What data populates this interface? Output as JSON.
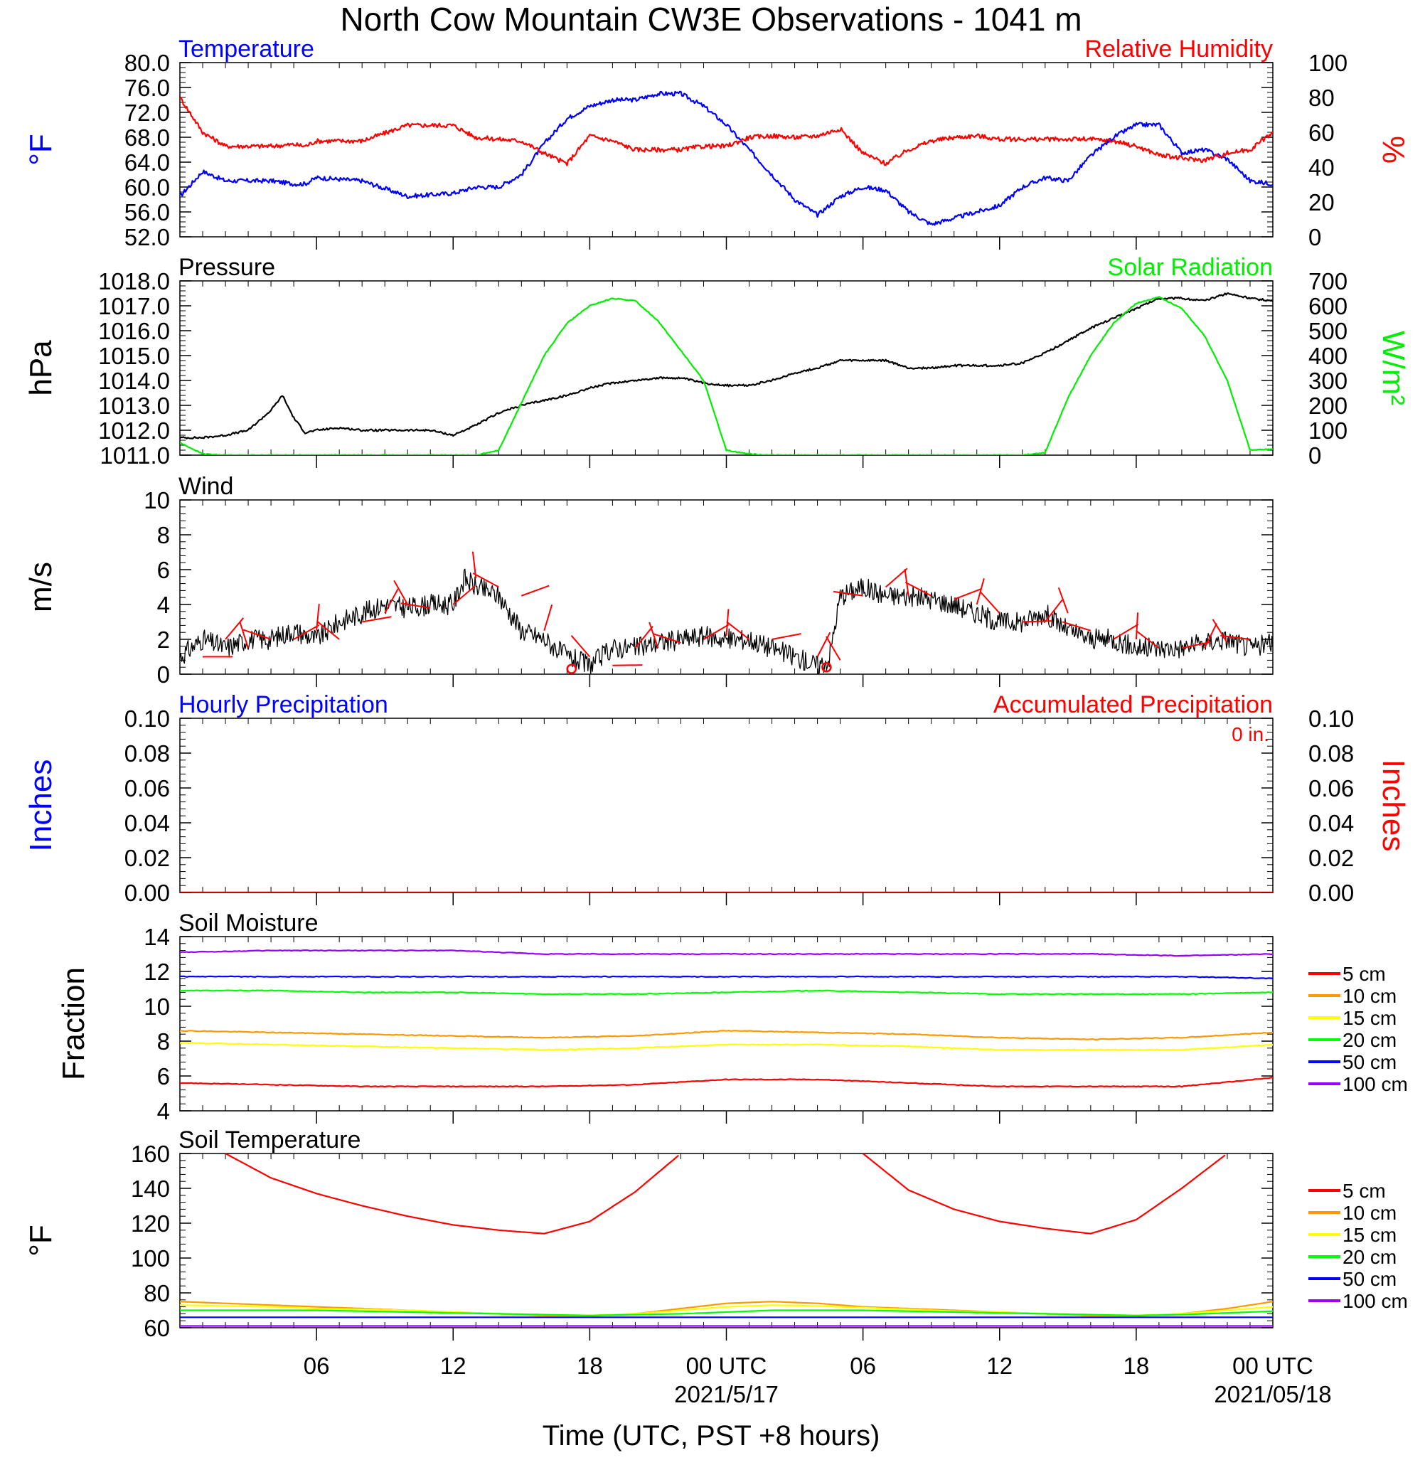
{
  "title": "North Cow Mountain CW3E Observations - 1041 m",
  "xlabel": "Time (UTC, PST +8 hours)",
  "x_ticks": [
    "06",
    "12",
    "18",
    "00 UTC",
    "06",
    "12",
    "18",
    "00 UTC"
  ],
  "x_date_labels": [
    "2021/5/17",
    "2021/05/18"
  ],
  "colors": {
    "temperature": "#0000ff",
    "humidity": "#ff0000",
    "pressure": "#000000",
    "solar": "#00ee00",
    "wind": "#000000",
    "barb": "#ff0000",
    "soil": [
      "#ff0000",
      "#ff9900",
      "#ffff00",
      "#00ff00",
      "#0000ff",
      "#9900ff"
    ]
  },
  "chart_data": [
    {
      "type": "line",
      "title_left": "Temperature",
      "title_right": "Relative Humidity",
      "ylabel_left": "°F",
      "ylabel_right": "%",
      "ylim_left": [
        52,
        80
      ],
      "ylim_right": [
        0,
        100
      ],
      "yticks_left": [
        "80.0",
        "76.0",
        "72.0",
        "68.0",
        "64.0",
        "60.0",
        "56.0",
        "52.0"
      ],
      "yticks_right": [
        "100",
        "80",
        "60",
        "40",
        "20",
        "0"
      ],
      "x_hours": [
        0,
        1,
        2,
        3,
        4,
        5,
        5.5,
        6,
        8,
        10,
        12,
        13,
        14,
        15,
        16,
        17,
        18,
        19,
        20,
        21,
        22,
        23,
        24,
        25,
        26,
        27,
        28,
        29,
        30,
        31,
        32,
        33,
        34,
        35,
        36,
        37,
        38,
        39,
        40,
        41,
        42,
        43,
        44,
        45,
        46,
        47,
        48
      ],
      "series": [
        {
          "name": "Temperature",
          "axis": "left",
          "values": [
            58.5,
            62.5,
            61,
            61,
            61,
            60.5,
            60.5,
            61.5,
            61,
            58.5,
            59,
            60,
            60,
            62,
            67,
            71,
            73,
            74,
            74,
            75,
            75,
            73,
            70,
            66,
            62,
            58,
            55.5,
            58.5,
            60,
            59.5,
            56,
            54,
            55,
            56,
            57,
            60,
            61.5,
            61,
            65,
            68,
            70,
            70,
            65.5,
            66,
            64.5,
            61,
            60.5
          ]
        },
        {
          "name": "Relative Humidity",
          "axis": "right",
          "values": [
            80,
            60,
            52,
            52,
            52,
            53,
            52,
            55,
            55,
            64,
            64,
            57,
            56,
            55,
            48,
            42,
            58,
            55,
            50,
            50,
            50,
            52,
            52,
            57,
            58,
            57,
            58,
            62,
            48,
            42,
            50,
            55,
            57,
            58,
            56,
            56,
            56,
            56,
            56,
            55,
            52,
            47,
            45,
            44,
            48,
            50,
            60
          ]
        }
      ]
    },
    {
      "type": "line",
      "title_left": "Pressure",
      "title_right": "Solar Radiation",
      "ylabel_left": "hPa",
      "ylabel_right": "W/m²",
      "ylim_left": [
        1011,
        1018
      ],
      "ylim_right": [
        0,
        700
      ],
      "yticks_left": [
        "1018.0",
        "1017.0",
        "1016.0",
        "1015.0",
        "1014.0",
        "1013.0",
        "1012.0",
        "1011.0"
      ],
      "yticks_right": [
        "700",
        "600",
        "500",
        "400",
        "300",
        "200",
        "100",
        "0"
      ],
      "x_hours": [
        0,
        1,
        2,
        3,
        4,
        4.5,
        5,
        5.5,
        6,
        7,
        8,
        9,
        10,
        11,
        12,
        13,
        14,
        15,
        16,
        17,
        18,
        19,
        20,
        21,
        22,
        23,
        24,
        25,
        26,
        27,
        28,
        29,
        30,
        31,
        32,
        33,
        34,
        35,
        36,
        37,
        38,
        39,
        40,
        41,
        42,
        43,
        44,
        45,
        46,
        47,
        48
      ],
      "series": [
        {
          "name": "Pressure",
          "axis": "left",
          "values": [
            1011.7,
            1011.7,
            1011.8,
            1012.0,
            1012.8,
            1013.4,
            1012.5,
            1011.9,
            1012.0,
            1012.1,
            1012.0,
            1012.0,
            1012.0,
            1012.0,
            1011.8,
            1012.2,
            1012.7,
            1013.0,
            1013.2,
            1013.4,
            1013.7,
            1013.9,
            1014.0,
            1014.1,
            1014.1,
            1013.9,
            1013.8,
            1013.8,
            1014.0,
            1014.3,
            1014.5,
            1014.8,
            1014.8,
            1014.8,
            1014.5,
            1014.5,
            1014.6,
            1014.6,
            1014.6,
            1014.7,
            1015.1,
            1015.6,
            1016.1,
            1016.5,
            1016.9,
            1017.3,
            1017.3,
            1017.2,
            1017.5,
            1017.3,
            1017.2
          ]
        },
        {
          "name": "Solar Radiation",
          "axis": "right",
          "values": [
            50,
            5,
            0,
            0,
            0,
            0,
            0,
            0,
            0,
            0,
            0,
            0,
            0,
            0,
            0,
            0,
            20,
            210,
            400,
            530,
            600,
            630,
            620,
            540,
            420,
            300,
            20,
            5,
            0,
            0,
            0,
            0,
            0,
            0,
            0,
            0,
            0,
            0,
            0,
            0,
            10,
            230,
            400,
            530,
            610,
            635,
            590,
            480,
            300,
            20,
            25
          ]
        }
      ]
    },
    {
      "type": "line",
      "title_left": "Wind",
      "ylabel_left": "m/s",
      "ylim_left": [
        0,
        10
      ],
      "yticks_left": [
        "10",
        "8",
        "6",
        "4",
        "2",
        "0"
      ],
      "x_hours": [
        0,
        1,
        2,
        3,
        4,
        5,
        6,
        7,
        8,
        9,
        10,
        11,
        12,
        12.5,
        13,
        14,
        15,
        16,
        17,
        18,
        19,
        20,
        21,
        22,
        23,
        24,
        25,
        26,
        27,
        28,
        28.5,
        29,
        30,
        31,
        32,
        33,
        34,
        35,
        36,
        37,
        38,
        39,
        40,
        41,
        42,
        43,
        44,
        45,
        46,
        47,
        48
      ],
      "series": [
        {
          "name": "Wind Speed",
          "values": [
            1,
            2,
            1.5,
            2,
            2,
            2.5,
            2,
            3,
            3.5,
            4,
            3.8,
            4,
            4,
            5.5,
            5,
            4.5,
            2.5,
            2,
            1,
            0.5,
            1.5,
            1.5,
            1.8,
            2,
            2.2,
            2,
            2,
            1.5,
            1,
            0.5,
            0.8,
            4.5,
            5,
            4.5,
            4.5,
            4.3,
            4,
            3.5,
            3,
            3,
            3.5,
            2.5,
            2,
            2,
            1.5,
            1.5,
            1.5,
            1.8,
            2,
            1.5,
            1.8
          ]
        }
      ]
    },
    {
      "type": "line",
      "title_left": "Hourly Precipitation",
      "title_right": "Accumulated Precipitation",
      "annotation": "0 in.",
      "ylabel_left": "Inches",
      "ylabel_right": "Inches",
      "ylim_left": [
        0,
        0.1
      ],
      "ylim_right": [
        0,
        0.1
      ],
      "yticks_left": [
        "0.10",
        "0.08",
        "0.06",
        "0.04",
        "0.02",
        "0.00"
      ],
      "yticks_right": [
        "0.10",
        "0.08",
        "0.06",
        "0.04",
        "0.02",
        "0.00"
      ],
      "x_hours": [
        0,
        48
      ],
      "series": [
        {
          "name": "Hourly Precipitation",
          "values": [
            0,
            0
          ]
        },
        {
          "name": "Accumulated Precipitation",
          "values": [
            0,
            0
          ]
        }
      ]
    },
    {
      "type": "line",
      "title_left": "Soil Moisture",
      "ylabel_left": "Fraction",
      "ylim_left": [
        4,
        14
      ],
      "yticks_left": [
        "14",
        "12",
        "10",
        "8",
        "6",
        "4"
      ],
      "legend": [
        "5 cm",
        "10 cm",
        "15 cm",
        "20 cm",
        "50 cm",
        "100 cm"
      ],
      "x_hours": [
        0,
        4,
        8,
        12,
        16,
        20,
        24,
        28,
        32,
        36,
        40,
        44,
        48
      ],
      "series": [
        {
          "name": "5 cm",
          "values": [
            5.6,
            5.5,
            5.4,
            5.4,
            5.4,
            5.5,
            5.8,
            5.8,
            5.6,
            5.4,
            5.4,
            5.4,
            5.9
          ]
        },
        {
          "name": "10 cm",
          "values": [
            8.6,
            8.5,
            8.4,
            8.3,
            8.2,
            8.3,
            8.6,
            8.5,
            8.4,
            8.2,
            8.1,
            8.2,
            8.5
          ]
        },
        {
          "name": "15 cm",
          "values": [
            7.9,
            7.8,
            7.7,
            7.6,
            7.5,
            7.6,
            7.8,
            7.8,
            7.7,
            7.5,
            7.5,
            7.5,
            7.8
          ]
        },
        {
          "name": "20 cm",
          "values": [
            10.9,
            10.9,
            10.8,
            10.8,
            10.7,
            10.7,
            10.8,
            10.9,
            10.8,
            10.7,
            10.7,
            10.7,
            10.8
          ]
        },
        {
          "name": "50 cm",
          "values": [
            11.7,
            11.7,
            11.7,
            11.7,
            11.7,
            11.7,
            11.7,
            11.7,
            11.7,
            11.7,
            11.7,
            11.7,
            11.6
          ]
        },
        {
          "name": "100 cm",
          "values": [
            13.1,
            13.2,
            13.2,
            13.2,
            13.0,
            13.0,
            13.0,
            13.0,
            13.0,
            13.0,
            13.0,
            12.9,
            13.0
          ]
        }
      ]
    },
    {
      "type": "line",
      "title_left": "Soil Temperature",
      "ylabel_left": "°F",
      "ylim_left": [
        60,
        160
      ],
      "yticks_left": [
        "160",
        "140",
        "120",
        "100",
        "80",
        "60"
      ],
      "legend": [
        "5 cm",
        "10 cm",
        "15 cm",
        "20 cm",
        "50 cm",
        "100 cm"
      ],
      "x_hours": [
        0,
        2,
        4,
        6,
        8,
        10,
        12,
        14,
        16,
        18,
        20,
        22,
        24,
        26,
        28,
        30,
        32,
        34,
        36,
        38,
        40,
        42,
        44,
        46,
        48
      ],
      "series": [
        {
          "name": "5 cm",
          "values": [
            null,
            160,
            146,
            137,
            130,
            124,
            119,
            116,
            114,
            121,
            138,
            160,
            null,
            null,
            null,
            160,
            139,
            128,
            121,
            117,
            114,
            122,
            140,
            160,
            null
          ]
        },
        {
          "name": "10 cm",
          "values": [
            75,
            74,
            73,
            72,
            71,
            70,
            69,
            68,
            67,
            67,
            68,
            71,
            74,
            75,
            74,
            72,
            71,
            70,
            69,
            68,
            67,
            67,
            68,
            71,
            75
          ]
        },
        {
          "name": "15 cm",
          "values": [
            73,
            72.5,
            72,
            71,
            70.5,
            70,
            69,
            68,
            67.5,
            67,
            68,
            70,
            72,
            73,
            72.5,
            71.5,
            70.5,
            69.5,
            69,
            68,
            67.5,
            67,
            68,
            70,
            72
          ]
        },
        {
          "name": "20 cm",
          "values": [
            70,
            70,
            70,
            70,
            69.5,
            69,
            68.5,
            68,
            67.5,
            67,
            67.5,
            68,
            69,
            70,
            70,
            70,
            69.5,
            69,
            68.5,
            68,
            67.5,
            67,
            67.5,
            68.5,
            69.5
          ]
        },
        {
          "name": "50 cm",
          "values": [
            66,
            66,
            66,
            66,
            66,
            66,
            66,
            66,
            66,
            66,
            66,
            66,
            66,
            66,
            66,
            66,
            66,
            66,
            66,
            66,
            66,
            66,
            66,
            66,
            66
          ]
        },
        {
          "name": "100 cm",
          "values": [
            61,
            61,
            61,
            61,
            61,
            61,
            61,
            61,
            61,
            61,
            61,
            61,
            61,
            61,
            61,
            61,
            61,
            61,
            61,
            61,
            61,
            61,
            61,
            61,
            61
          ]
        }
      ]
    }
  ]
}
